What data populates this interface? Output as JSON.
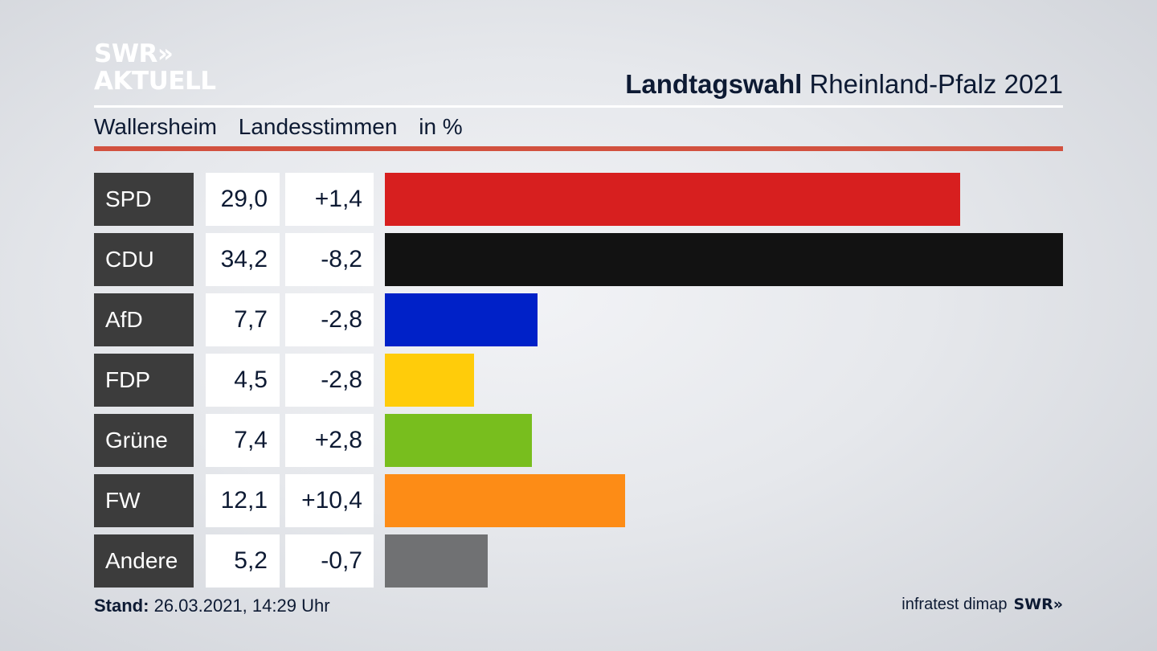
{
  "logo": {
    "line1": "SWR»",
    "line2": "AKTUELL"
  },
  "header": {
    "title_bold": "Landtagswahl",
    "title_rest": "Rheinland-Pfalz 2021"
  },
  "subheader": {
    "place": "Wallersheim",
    "measure": "Landesstimmen",
    "unit": "in %"
  },
  "footer": {
    "stand_label": "Stand:",
    "stand_value": "26.03.2021, 14:29 Uhr",
    "source": "infratest dimap",
    "source_logo": "SWR»"
  },
  "chart_data": {
    "type": "bar",
    "orientation": "horizontal",
    "categories": [
      "SPD",
      "CDU",
      "AfD",
      "FDP",
      "Grüne",
      "FW",
      "Andere"
    ],
    "values": [
      29.0,
      34.2,
      7.7,
      4.5,
      7.4,
      12.1,
      5.2
    ],
    "value_labels": [
      "29,0",
      "34,2",
      "7,7",
      "4,5",
      "7,4",
      "12,1",
      "5,2"
    ],
    "change_labels": [
      "+1,4",
      "-8,2",
      "-2,8",
      "-2,8",
      "+2,8",
      "+10,4",
      "-0,7"
    ],
    "changes": [
      1.4,
      -8.2,
      -2.8,
      -2.8,
      2.8,
      10.4,
      -0.7
    ],
    "colors": [
      "#d71f1f",
      "#121212",
      "#0021c8",
      "#ffcc0a",
      "#78be1e",
      "#fd8c16",
      "#707173"
    ],
    "xlim": [
      0,
      34.2
    ],
    "grid": false,
    "legend": "none"
  }
}
